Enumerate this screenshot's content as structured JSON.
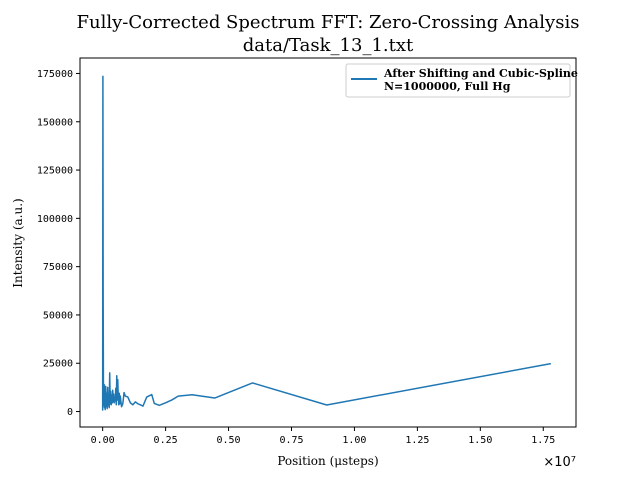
{
  "chart_data": {
    "type": "line",
    "title": "Fully-Corrected Spectrum FFT: Zero-Crossing Analysis",
    "subtitle": "data/Task_13_1.txt",
    "xlabel": "Position (μsteps)",
    "ylabel": "Intensity (a.u.)",
    "x_offset_label": "×10⁷",
    "x_scale": 10000000,
    "xlim": [
      -900000,
      18800000
    ],
    "ylim": [
      -8000,
      183000
    ],
    "xticks": [
      0,
      2500000,
      5000000,
      7500000,
      10000000,
      12500000,
      15000000,
      17500000
    ],
    "xtick_labels": [
      "0.00",
      "0.25",
      "0.50",
      "0.75",
      "1.00",
      "1.25",
      "1.50",
      "1.75"
    ],
    "yticks": [
      0,
      25000,
      50000,
      75000,
      100000,
      125000,
      150000,
      175000
    ],
    "ytick_labels": [
      "0",
      "25000",
      "50000",
      "75000",
      "100000",
      "125000",
      "150000",
      "175000"
    ],
    "grid": false,
    "legend_position": "top-right",
    "series": [
      {
        "name": "After Shifting and Cubic-Spline",
        "name_line2": "N=1000000, Full Hg",
        "color": "#1f77b4",
        "x": [
          0,
          10000,
          20000,
          30000,
          40000,
          50000,
          60000,
          70000,
          80000,
          100000,
          120000,
          140000,
          160000,
          180000,
          200000,
          220000,
          240000,
          260000,
          280000,
          300000,
          320000,
          340000,
          360000,
          380000,
          400000,
          420000,
          440000,
          460000,
          480000,
          500000,
          520000,
          540000,
          560000,
          580000,
          600000,
          620000,
          640000,
          660000,
          680000,
          700000,
          750000,
          800000,
          850000,
          900000,
          1000000,
          1100000,
          1200000,
          1300000,
          1400000,
          1500000,
          1600000,
          1750000,
          1950000,
          2050000,
          2250000,
          2500000,
          2750000,
          3000000,
          3550000,
          4450000,
          5950000,
          8900000,
          17800000
        ],
        "y": [
          500,
          173500,
          60000,
          15000,
          9000,
          3000,
          14000,
          2000,
          11000,
          1000,
          13000,
          2500,
          9500,
          1500,
          12500,
          3000,
          8000,
          2000,
          20000,
          4000,
          10500,
          3500,
          8500,
          4500,
          11000,
          5000,
          9000,
          4500,
          7000,
          5500,
          12000,
          3500,
          18500,
          6000,
          16500,
          7000,
          3500,
          9500,
          4000,
          8000,
          2500,
          4000,
          9800,
          8000,
          7500,
          4500,
          3500,
          5000,
          4000,
          3500,
          2800,
          7500,
          8800,
          4200,
          3200,
          4500,
          6000,
          8000,
          8700,
          7000,
          14800,
          3400,
          24800
        ]
      }
    ]
  }
}
